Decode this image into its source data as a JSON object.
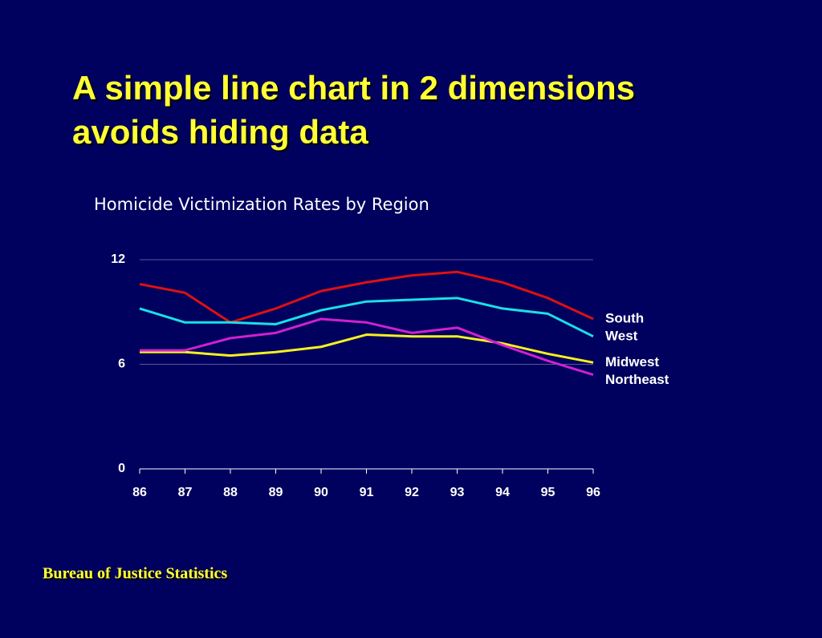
{
  "slide_title": "A simple line chart in 2 dimensions avoids hiding data",
  "footer": "Bureau of Justice Statistics",
  "chart_data": {
    "type": "line",
    "title": "Homicide Victimization Rates by Region",
    "x": [
      86,
      87,
      88,
      89,
      90,
      91,
      92,
      93,
      94,
      95,
      96
    ],
    "xlim": [
      86,
      96
    ],
    "xticks": [
      86,
      87,
      88,
      89,
      90,
      91,
      92,
      93,
      94,
      95,
      96
    ],
    "ylim": [
      0,
      12
    ],
    "yticks": [
      0,
      6,
      12
    ],
    "grid": true,
    "series": [
      {
        "name": "South",
        "color": "#e01010",
        "values": [
          10.6,
          10.1,
          8.4,
          9.2,
          10.2,
          10.7,
          11.1,
          11.3,
          10.7,
          9.8,
          8.6
        ]
      },
      {
        "name": "West",
        "color": "#19e0e8",
        "values": [
          9.2,
          8.4,
          8.4,
          8.3,
          9.1,
          9.6,
          9.7,
          9.8,
          9.2,
          8.9,
          7.6
        ]
      },
      {
        "name": "Midwest",
        "color": "#f8f020",
        "values": [
          6.7,
          6.7,
          6.5,
          6.7,
          7.0,
          7.7,
          7.6,
          7.6,
          7.2,
          6.6,
          6.1
        ]
      },
      {
        "name": "Northeast",
        "color": "#d020d0",
        "values": [
          6.8,
          6.8,
          7.5,
          7.8,
          8.6,
          8.4,
          7.8,
          8.1,
          7.1,
          6.2,
          5.4
        ]
      }
    ]
  }
}
